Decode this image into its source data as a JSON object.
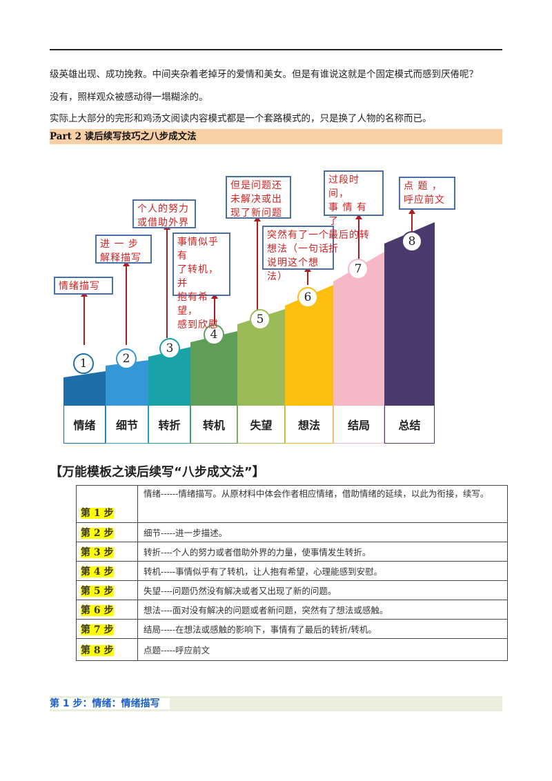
{
  "paragraphs": [
    "级英雄出现、成功挽救。中间夹杂着老掉牙的爱情和美女。但是有谁说这就是个固定模式而感到厌倦呢？",
    "没有，照样观众被感动得一塌糊涂的。",
    "实际上大部分的完形和鸡汤文阅读内容模式都是一个套路模式的，只是换了人物的名称而已。"
  ],
  "section_heading": "Part  2  读后续写技巧之八步成文法",
  "diagram": {
    "steps": [
      {
        "num": "1",
        "label": "情绪",
        "note": "情绪描写",
        "color": "#1e6fa8"
      },
      {
        "num": "2",
        "label": "细节",
        "note": "进 一 步\n解释描写",
        "color": "#3497d6"
      },
      {
        "num": "3",
        "label": "转折",
        "note": "个人的努力\n或借助外界",
        "color": "#1aa3a6"
      },
      {
        "num": "4",
        "label": "转机",
        "note": "事情似乎有\n了转机，并\n抱有希望，\n感到欣慰",
        "color": "#5f9e57"
      },
      {
        "num": "5",
        "label": "失望",
        "note": "但是问题还\n未解决或出\n现了新问题",
        "color": "#9bbb59"
      },
      {
        "num": "6",
        "label": "想法",
        "note": "突然有了一个\n想法（一句话\n说明这个想法）",
        "color": "#fdbf0f"
      },
      {
        "num": "7",
        "label": "结局",
        "note": "过段时间，\n事 情 有 了\n最后的转折",
        "color": "#f4b8c6"
      },
      {
        "num": "8",
        "label": "总结",
        "note": "点 题 ，\n呼应前文",
        "color": "#4a3a6e"
      }
    ]
  },
  "template_title": "【万能模板之读后续写“八步成文法”】",
  "table": [
    {
      "step": "第 1 步",
      "desc": "情绪------情绪描写。从原材料中体会作者相应情绪，借助情绪的延续，以此为衔接，续写。"
    },
    {
      "step": "第 2 步",
      "desc": "细节-----进一步描述。"
    },
    {
      "step": "第 3 步",
      "desc": "转折----个人的努力或者借助外界的力量，使事情发生转折。"
    },
    {
      "step": "第 4 步",
      "desc": " 转机-----事情似乎有了转机，让人抱有希望，心理能感到安慰。"
    },
    {
      "step": "第 5 步",
      "desc": "失望----问题仍然没有解决或者又出现了新的问题。"
    },
    {
      "step": "第 6 步",
      "desc": "想法----面对没有解决的问题或者新问题，突然有了想法或感触。"
    },
    {
      "step": "第 7 步",
      "desc": "结局-----在想法或感触的影响下，事情有了最后的转折/转机。"
    },
    {
      "step": "第 8 步",
      "desc": "点题-----呼应前文"
    }
  ],
  "subheading": "第 1 步：情绪：情绪描写"
}
